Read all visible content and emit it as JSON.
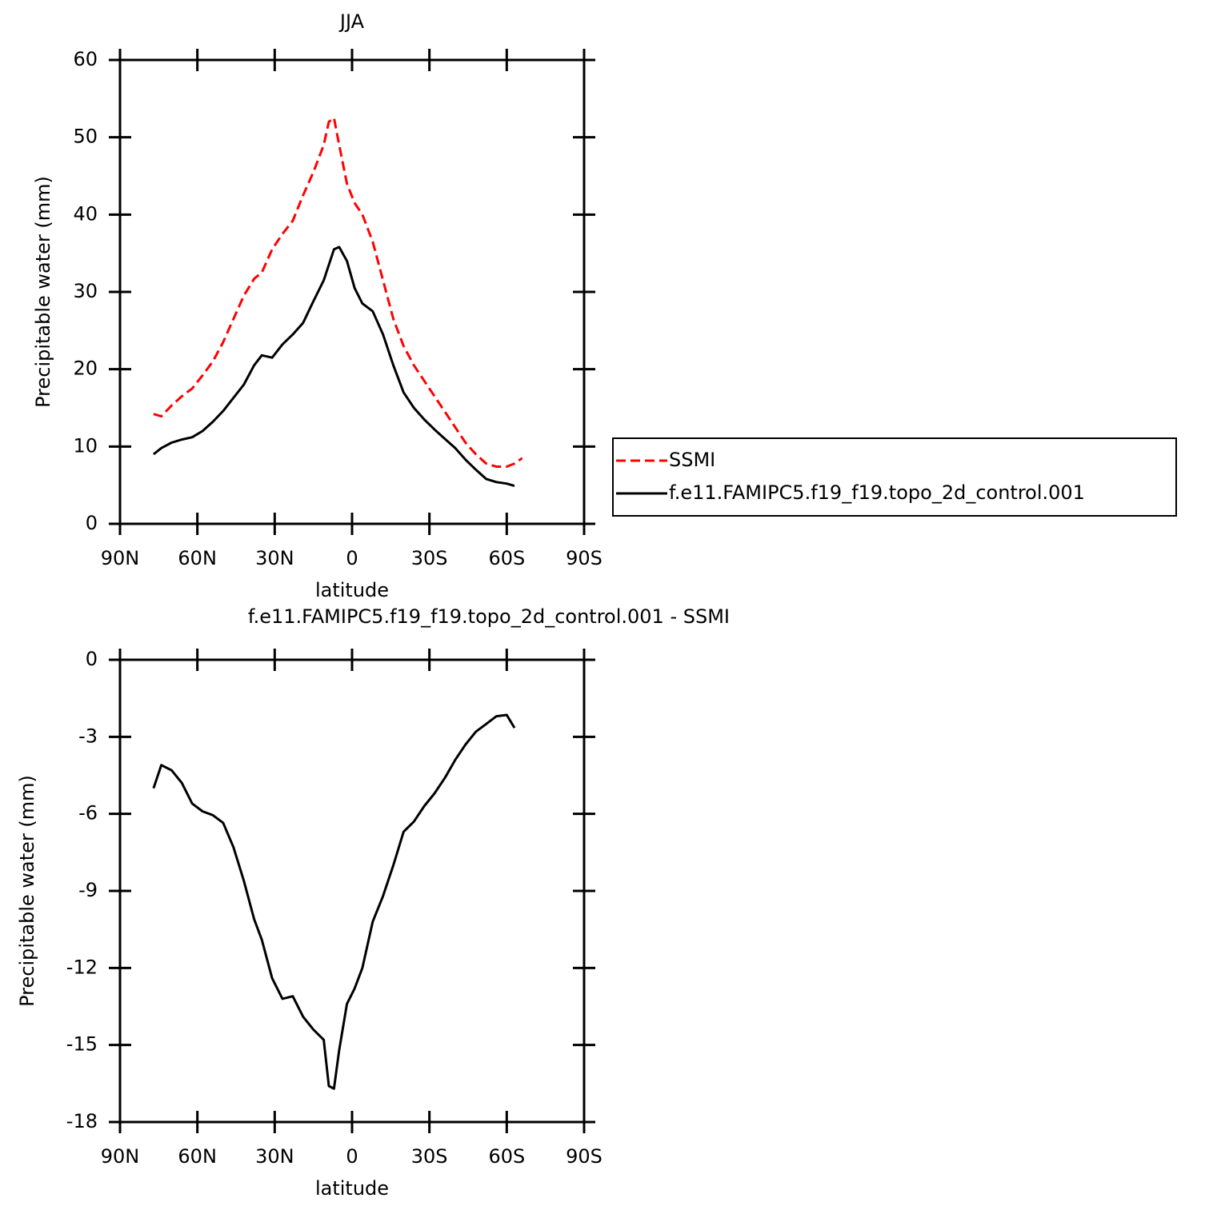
{
  "chart_data": [
    {
      "type": "line",
      "title": "JJA",
      "x_label": "latitude",
      "y_label": "Precipitable water (mm)",
      "xlim": [
        90,
        -90
      ],
      "xticks": [
        {
          "value": 90,
          "label": "90N"
        },
        {
          "value": 60,
          "label": "60N"
        },
        {
          "value": 30,
          "label": "30N"
        },
        0,
        {
          "value": -30,
          "label": "30S"
        },
        {
          "value": -60,
          "label": "60S"
        },
        {
          "value": -90,
          "label": "90S"
        }
      ],
      "ylim": [
        0,
        60
      ],
      "yticks": [
        0,
        10,
        20,
        30,
        40,
        50,
        60
      ],
      "x": [
        77,
        74,
        70,
        66,
        62,
        58,
        54,
        50,
        46,
        42,
        38,
        35,
        31,
        27,
        23,
        19,
        15,
        11,
        9,
        7,
        5,
        2,
        -1,
        -4,
        -8,
        -12,
        -16,
        -20,
        -24,
        -28,
        -32,
        -36,
        -40,
        -44,
        -48,
        -52,
        -56,
        -60,
        -63,
        -66
      ],
      "series": [
        {
          "name": "SSMI",
          "color": "#ff0000",
          "dash": true,
          "values": [
            14.2,
            13.9,
            15.3,
            16.5,
            17.5,
            19.2,
            21,
            23.5,
            26.5,
            29.5,
            31.7,
            32.5,
            35.5,
            37.5,
            39.2,
            42.5,
            45.5,
            49,
            52,
            52.5,
            49,
            44,
            41.5,
            40,
            36.5,
            31.5,
            26.5,
            23,
            20.5,
            18.5,
            16.5,
            14.5,
            12.5,
            10.5,
            9,
            7.8,
            7.4,
            7.4,
            7.8,
            8.5
          ]
        },
        {
          "name": "f.e11.FAMIPC5.f19_f19.topo_2d_control.001",
          "color": "#000000",
          "dash": false,
          "values": [
            9,
            9.8,
            10.5,
            10.9,
            11.2,
            12,
            13.2,
            14.6,
            16.3,
            18,
            20.5,
            21.8,
            21.5,
            23.2,
            24.5,
            26,
            28.8,
            31.5,
            33.5,
            35.5,
            35.8,
            34,
            30.5,
            28.5,
            27.5,
            24.5,
            20.5,
            17,
            15,
            13.5,
            12.2,
            11,
            9.8,
            8.3,
            7,
            5.8,
            5.4,
            5.2,
            4.9,
            null
          ]
        }
      ]
    },
    {
      "type": "line",
      "title": "f.e11.FAMIPC5.f19_f19.topo_2d_control.001 - SSMI",
      "x_label": "latitude",
      "y_label": "Precipitable water (mm)",
      "xlim": [
        90,
        -90
      ],
      "xticks": [
        {
          "value": 90,
          "label": "90N"
        },
        {
          "value": 60,
          "label": "60N"
        },
        {
          "value": 30,
          "label": "30N"
        },
        0,
        {
          "value": -30,
          "label": "30S"
        },
        {
          "value": -60,
          "label": "60S"
        },
        {
          "value": -90,
          "label": "90S"
        }
      ],
      "ylim": [
        -18,
        0
      ],
      "yticks": [
        -18,
        -15,
        -12,
        -9,
        -6,
        -3,
        0
      ],
      "x": [
        77,
        74,
        70,
        66,
        62,
        58,
        54,
        50,
        46,
        42,
        38,
        35,
        31,
        27,
        23,
        19,
        15,
        11,
        9,
        7,
        5,
        2,
        -1,
        -4,
        -8,
        -12,
        -16,
        -20,
        -24,
        -28,
        -32,
        -36,
        -40,
        -44,
        -48,
        -52,
        -56,
        -60,
        -63
      ],
      "series": [
        {
          "color": "#000000",
          "dash": false,
          "values": [
            -5.0,
            -4.1,
            -4.3,
            -4.8,
            -5.6,
            -5.9,
            -6.05,
            -6.35,
            -7.3,
            -8.6,
            -10.1,
            -10.9,
            -12.4,
            -13.2,
            -13.1,
            -13.9,
            -14.4,
            -14.8,
            -16.6,
            -16.7,
            -15.2,
            -13.4,
            -12.8,
            -12.0,
            -10.2,
            -9.2,
            -8.0,
            -6.7,
            -6.3,
            -5.7,
            -5.2,
            -4.6,
            -3.9,
            -3.3,
            -2.8,
            -2.5,
            -2.2,
            -2.15,
            -2.65
          ]
        }
      ]
    }
  ]
}
